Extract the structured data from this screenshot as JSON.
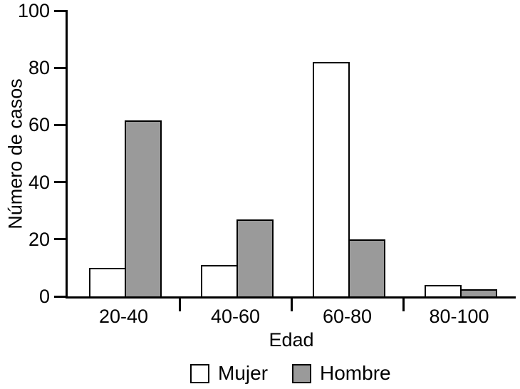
{
  "chart_data": {
    "type": "bar",
    "title": "",
    "categories": [
      "20-40",
      "40-60",
      "60-80",
      "80-100"
    ],
    "series": [
      {
        "name": "Mujer",
        "color": "#ffffff",
        "values": [
          10,
          11,
          82,
          4
        ]
      },
      {
        "name": "Hombre",
        "color": "#9a9a9a",
        "values": [
          61.5,
          27,
          20,
          2.5
        ]
      }
    ],
    "xlabel": "Edad",
    "ylabel": "Número de casos",
    "ylim": [
      0,
      100
    ],
    "yticks": [
      "0",
      "20",
      "40",
      "60",
      "80",
      "100"
    ],
    "grid": false,
    "legend_position": "bottom-center",
    "axis_color": "#000000",
    "bar_border_color": "#000000",
    "background": "#ffffff"
  }
}
